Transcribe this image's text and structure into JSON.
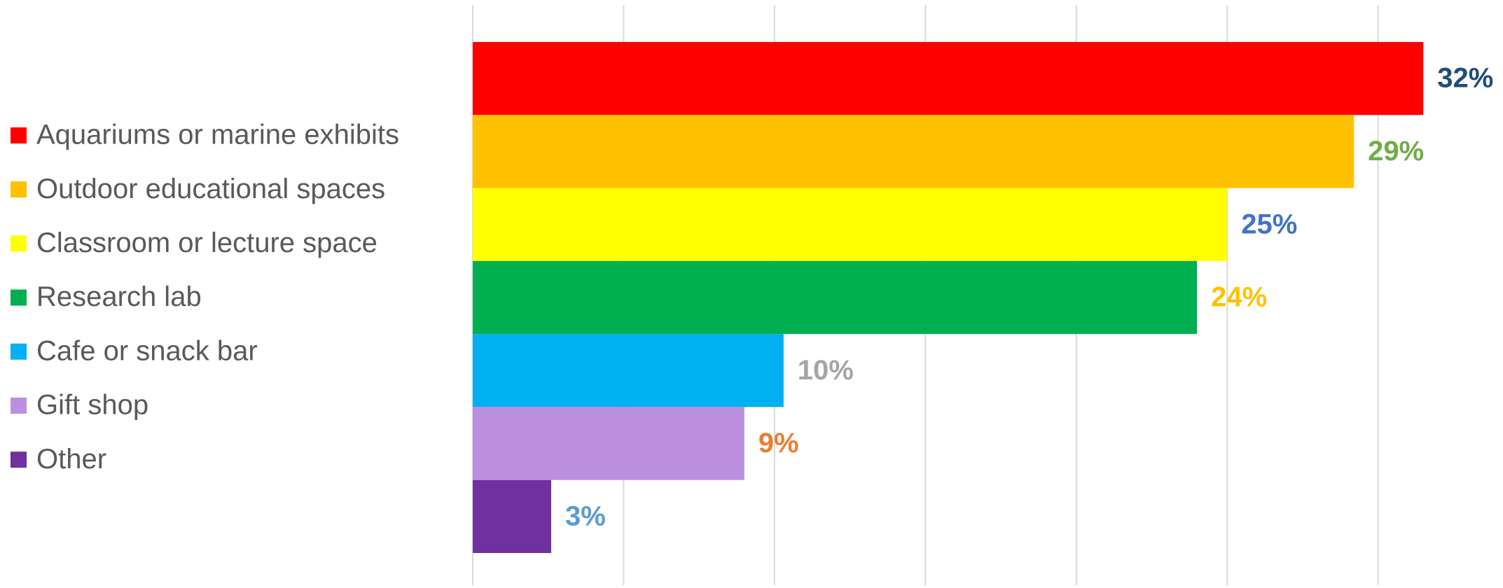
{
  "chart_data": {
    "type": "bar",
    "orientation": "horizontal",
    "categories": [
      "Aquariums or marine exhibits",
      "Outdoor educational spaces",
      "Classroom or lecture space",
      "Research lab",
      "Cafe or snack bar",
      "Gift shop",
      "Other"
    ],
    "values": [
      31.5,
      29.2,
      25,
      24,
      10.3,
      9,
      2.6
    ],
    "value_labels": [
      "32%",
      "29%",
      "25%",
      "24%",
      "10%",
      "9%",
      "3%"
    ],
    "colors": [
      "#ff0000",
      "#ffc000",
      "#ffff00",
      "#00b050",
      "#00b0f0",
      "#bb8fdd",
      "#7030a0"
    ],
    "label_colors": [
      "#1f4e79",
      "#70ad47",
      "#4472c4",
      "#ffc000",
      "#a5a5a5",
      "#ed7d31",
      "#5b9bd5"
    ],
    "xlim": [
      0,
      34
    ],
    "xticks": [
      0,
      5,
      10,
      15,
      20,
      25,
      30
    ],
    "grid": true,
    "legend": "left"
  }
}
